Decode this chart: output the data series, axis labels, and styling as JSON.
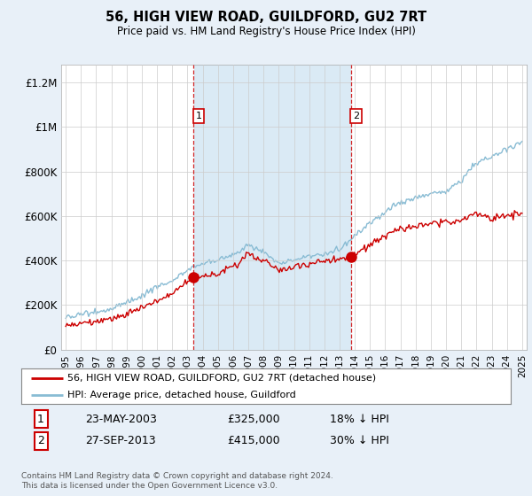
{
  "title": "56, HIGH VIEW ROAD, GUILDFORD, GU2 7RT",
  "subtitle": "Price paid vs. HM Land Registry's House Price Index (HPI)",
  "ylabel_ticks": [
    "£0",
    "£200K",
    "£400K",
    "£600K",
    "£800K",
    "£1M",
    "£1.2M"
  ],
  "ytick_values": [
    0,
    200000,
    400000,
    600000,
    800000,
    1000000,
    1200000
  ],
  "ylim": [
    0,
    1280000
  ],
  "xlim_start": 1994.7,
  "xlim_end": 2025.3,
  "legend_label_red": "56, HIGH VIEW ROAD, GUILDFORD, GU2 7RT (detached house)",
  "legend_label_blue": "HPI: Average price, detached house, Guildford",
  "transaction1_label": "1",
  "transaction1_date": "23-MAY-2003",
  "transaction1_price": "£325,000",
  "transaction1_hpi": "18% ↓ HPI",
  "transaction2_label": "2",
  "transaction2_date": "27-SEP-2013",
  "transaction2_price": "£415,000",
  "transaction2_hpi": "30% ↓ HPI",
  "transaction1_x": 2003.38,
  "transaction1_y": 325000,
  "transaction2_x": 2013.74,
  "transaction2_y": 415000,
  "copyright_text": "Contains HM Land Registry data © Crown copyright and database right 2024.\nThis data is licensed under the Open Government Licence v3.0.",
  "red_color": "#cc0000",
  "blue_color": "#89bcd4",
  "shade_color": "#daeaf5",
  "background_color": "#e8f0f8",
  "plot_bg_color": "#ffffff",
  "grid_color": "#cccccc",
  "dashed_line_color": "#cc0000"
}
